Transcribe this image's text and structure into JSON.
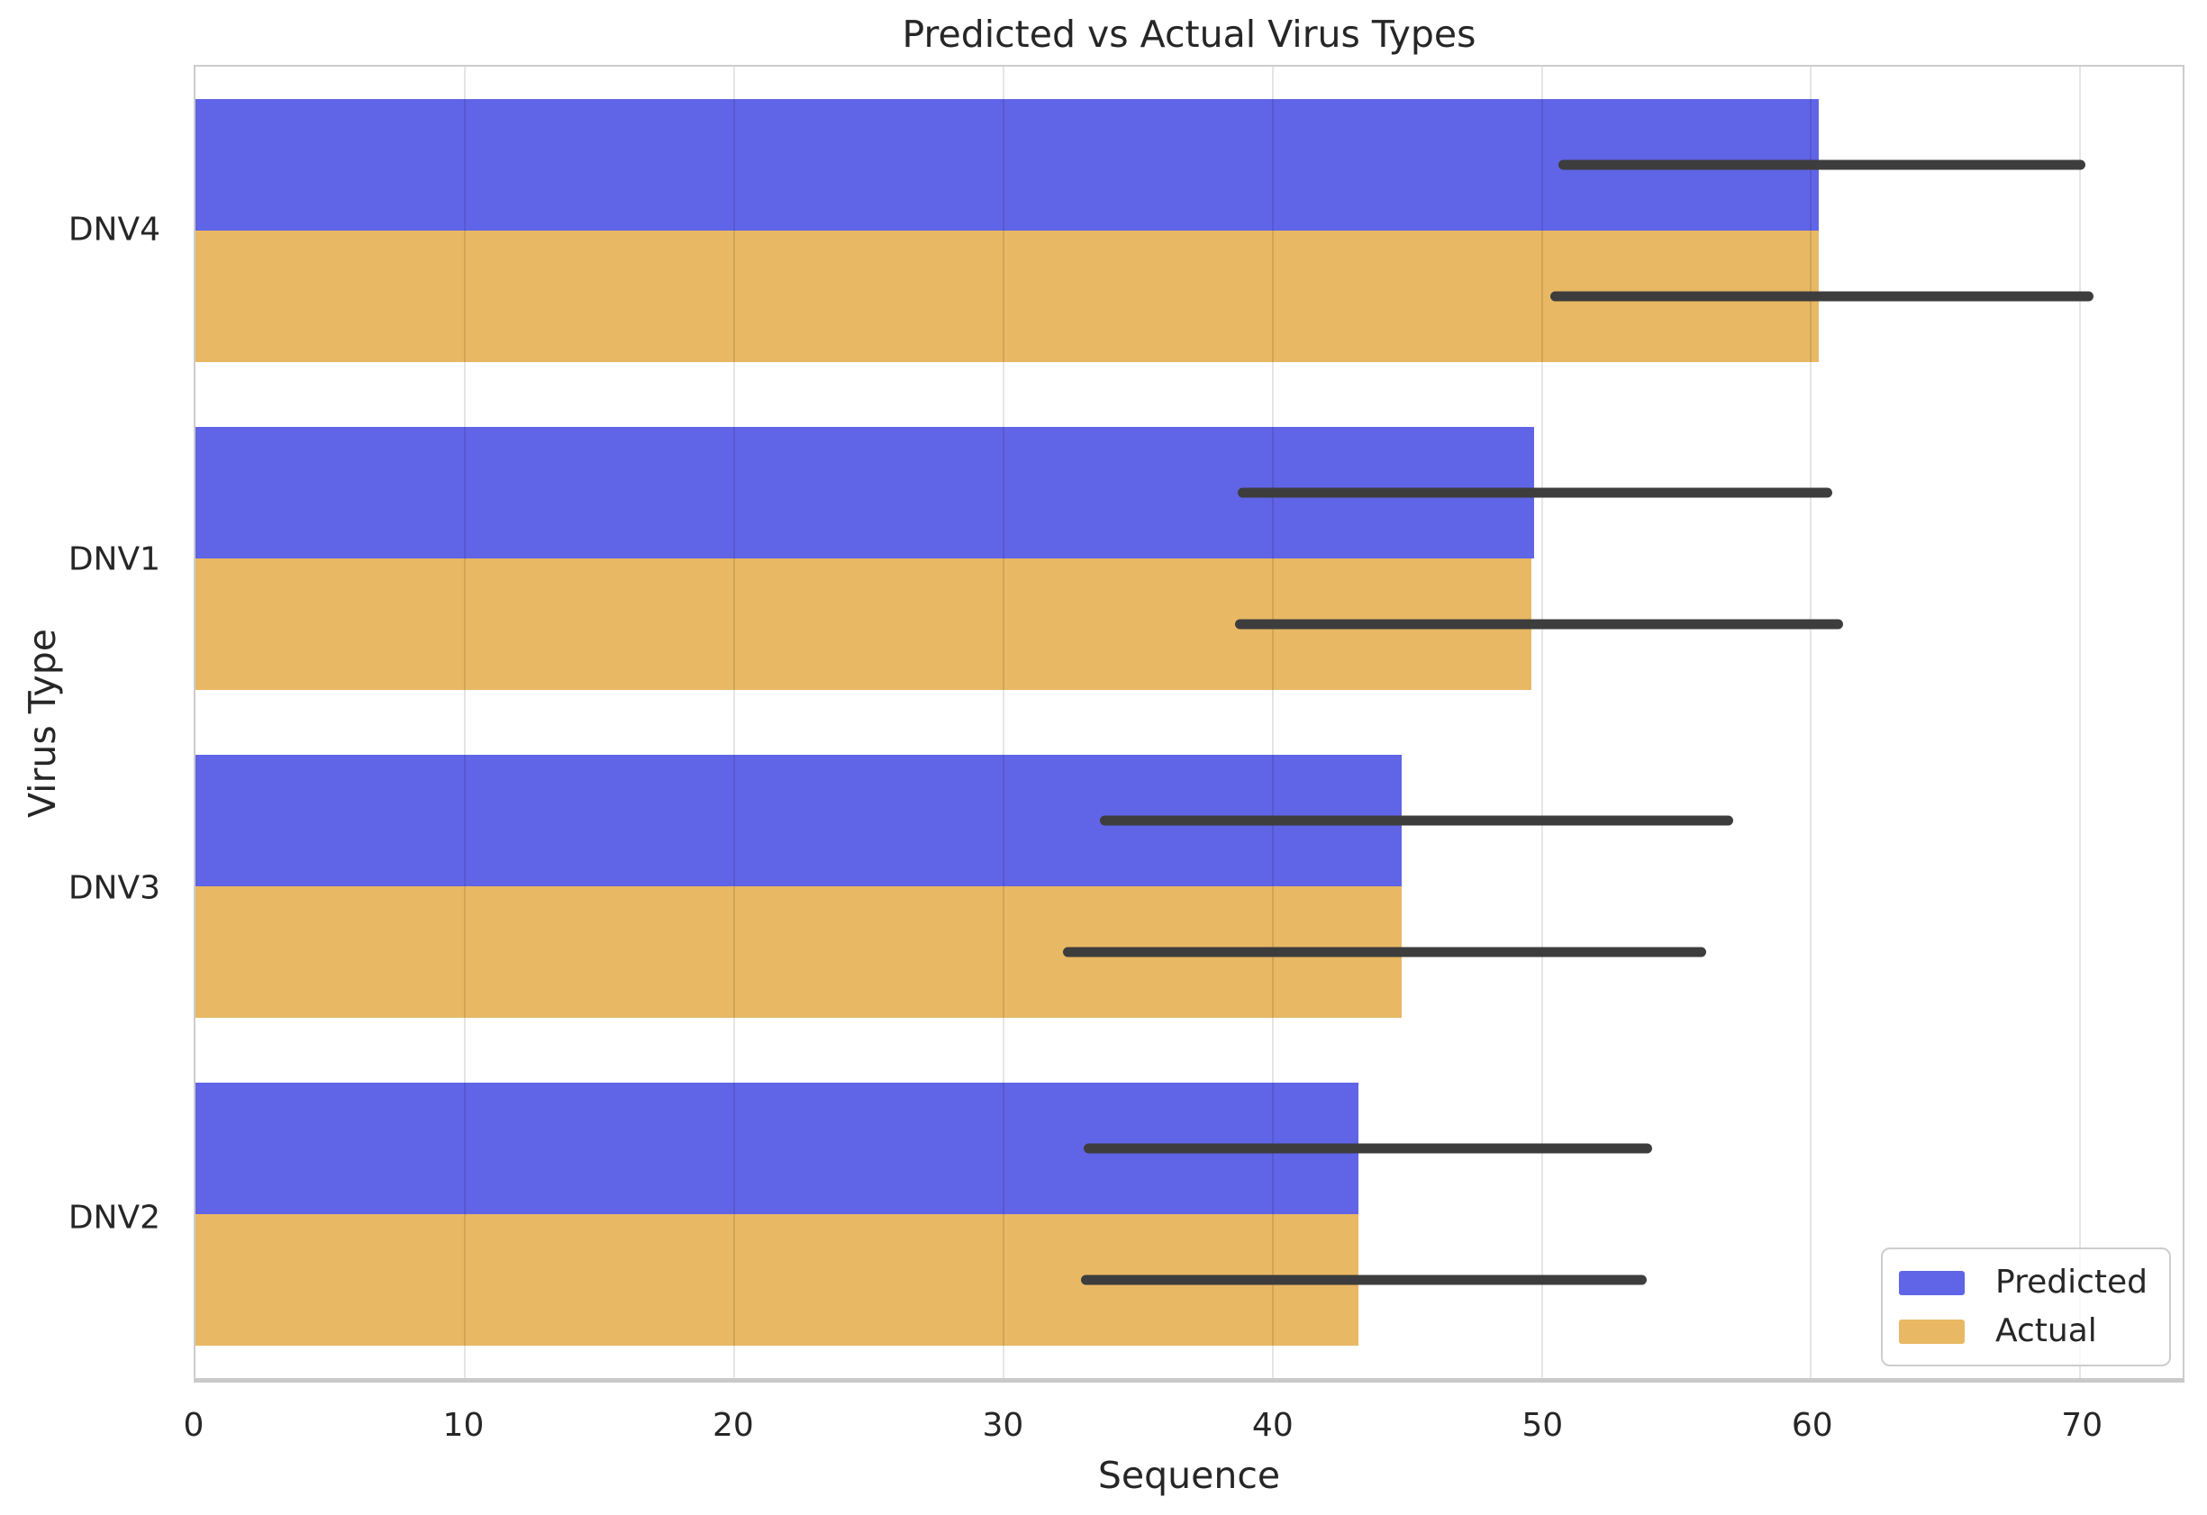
{
  "figure": {
    "title": "Predicted vs Actual Virus Types",
    "xlabel": "Sequence",
    "ylabel": "Virus Type"
  },
  "legend": {
    "items": [
      {
        "label": "Predicted",
        "color": "#6064e6"
      },
      {
        "label": "Actual",
        "color": "#e8b864"
      }
    ]
  },
  "chart_data": {
    "type": "bar",
    "orientation": "horizontal",
    "title": "Predicted vs Actual Virus Types",
    "xlabel": "Sequence",
    "ylabel": "Virus Type",
    "categories": [
      "DNV4",
      "DNV1",
      "DNV3",
      "DNV2"
    ],
    "series": [
      {
        "name": "Predicted",
        "color": "#6064e6",
        "values": [
          60.3,
          49.7,
          44.8,
          43.2
        ],
        "error_low": [
          50.6,
          38.7,
          33.6,
          33.0
        ],
        "error_high": [
          70.2,
          60.8,
          57.1,
          54.1
        ]
      },
      {
        "name": "Actual",
        "color": "#e8b864",
        "values": [
          60.3,
          49.6,
          44.8,
          43.2
        ],
        "error_low": [
          50.3,
          38.6,
          32.2,
          32.9
        ],
        "error_high": [
          70.5,
          61.2,
          56.1,
          53.9
        ]
      }
    ],
    "xlim": [
      0,
      73.8
    ],
    "xticks": [
      0,
      10,
      20,
      30,
      40,
      50,
      60,
      70
    ],
    "grid": "vertical",
    "legend_position": "lower right",
    "error_bar_color": "#3d3d3d",
    "text_color": "#262626",
    "background_color": "#ffffff"
  }
}
